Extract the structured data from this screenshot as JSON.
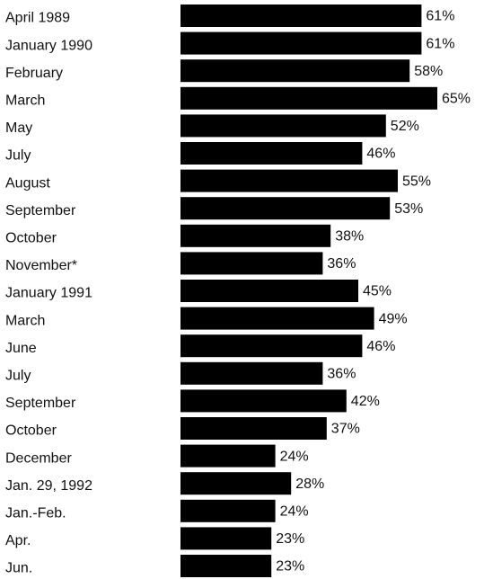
{
  "chart_data": {
    "type": "bar",
    "orientation": "horizontal",
    "color": "#000000",
    "categories": [
      "April 1989",
      "January 1990",
      "February",
      "March",
      "May",
      "July",
      "August",
      "September",
      "October",
      "November*",
      "January 1991",
      "March",
      "June",
      "July",
      "September",
      "October",
      "December",
      "Jan. 29, 1992",
      "Jan.-Feb.",
      "Apr.",
      "Jun."
    ],
    "values": [
      61,
      61,
      58,
      65,
      52,
      46,
      55,
      53,
      38,
      36,
      45,
      49,
      46,
      36,
      42,
      37,
      24,
      28,
      24,
      23,
      23
    ],
    "value_labels": [
      "61%",
      "61%",
      "58%",
      "65%",
      "52%",
      "46%",
      "55%",
      "53%",
      "38%",
      "36%",
      "45%",
      "49%",
      "46%",
      "36%",
      "42%",
      "37%",
      "24%",
      "28%",
      "24%",
      "23%",
      "23%"
    ]
  }
}
